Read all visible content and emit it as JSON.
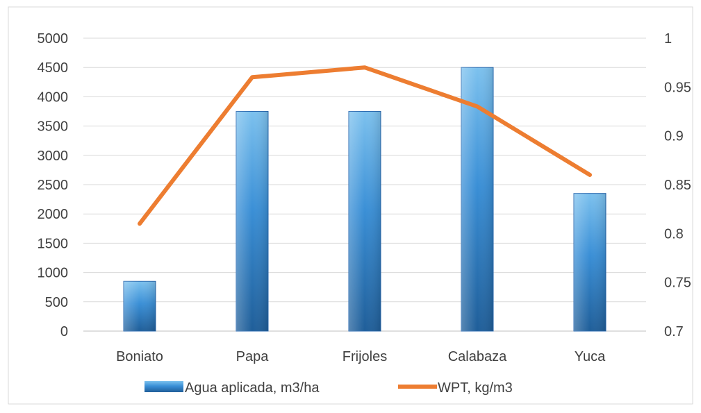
{
  "chart_data": {
    "type": "bar",
    "categories": [
      "Boniato",
      "Papa",
      "Frijoles",
      "Calabaza",
      "Yuca"
    ],
    "series": [
      {
        "name": "Agua aplicada, m3/ha",
        "type": "bar",
        "axis": "left",
        "values": [
          850,
          3750,
          3750,
          4500,
          2350
        ]
      },
      {
        "name": "WPT, kg/m3",
        "type": "line",
        "axis": "right",
        "values": [
          0.81,
          0.96,
          0.97,
          0.93,
          0.86
        ]
      }
    ],
    "y_left": {
      "lim": [
        0,
        5000
      ],
      "ticks": [
        "0",
        "500",
        "1000",
        "1500",
        "2000",
        "2500",
        "3000",
        "3500",
        "4000",
        "4500",
        "5000"
      ]
    },
    "y_right": {
      "lim": [
        0.7,
        1.0
      ],
      "ticks": [
        "0.7",
        "0.75",
        "0.8",
        "0.85",
        "0.9",
        "0.95",
        "1"
      ]
    },
    "grid": true,
    "legend": "bottom",
    "colors": {
      "bar_top": "#5dade6",
      "bar_mid": "#2f7fc8",
      "bar_bottom": "#1f5e99",
      "line": "#ed7d31",
      "grid": "#d9d9d9",
      "text": "#404040",
      "border": "#d9d9d9"
    }
  }
}
